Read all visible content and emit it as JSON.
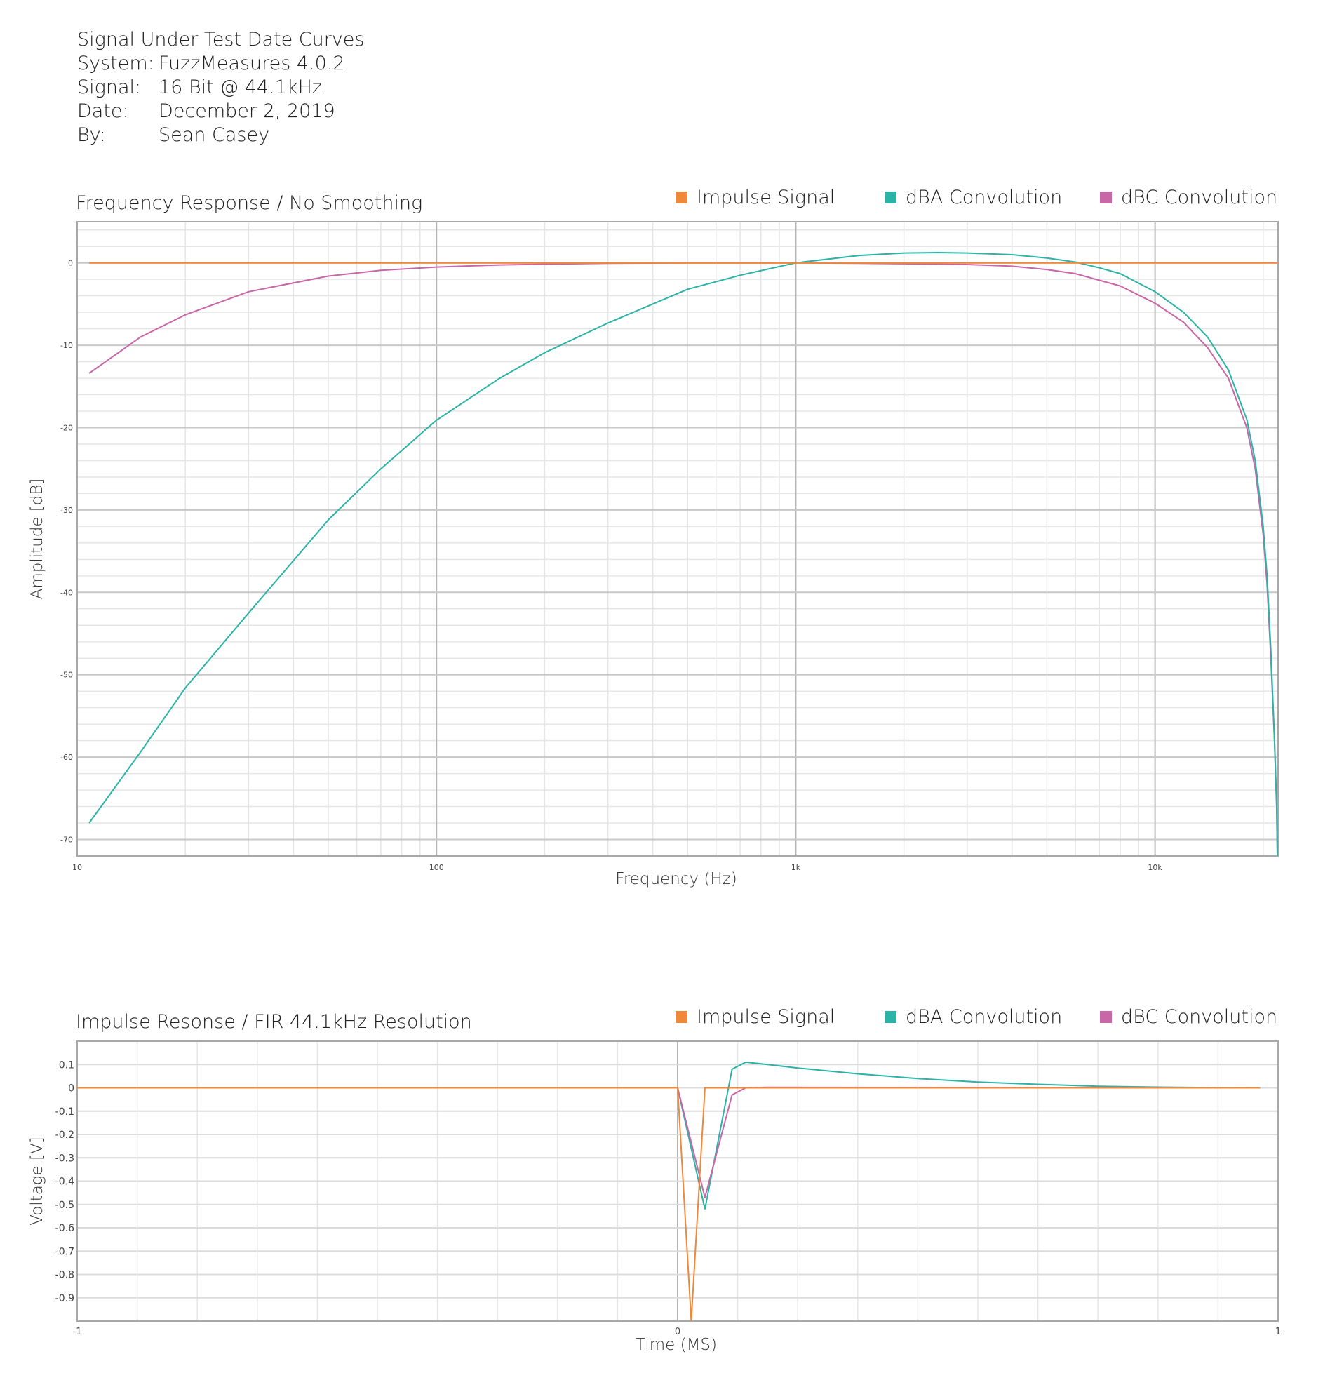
{
  "header": {
    "title": "Signal Under Test Date Curves",
    "system_label": "System:",
    "system_value": "FuzzMeasures 4.0.2",
    "signal_label": "Signal:",
    "signal_value": "16 Bit @ 44.1kHz",
    "date_label": "Date:",
    "date_value": "December 2, 2019",
    "by_label": "By:",
    "by_value": "Sean Casey"
  },
  "chart_data": [
    {
      "type": "line",
      "title": "Frequency Response / No Smoothing",
      "xlabel": "Frequency (Hz)",
      "ylabel": "Amplitude [dB]",
      "xscale": "log",
      "xlim": [
        10,
        22000
      ],
      "ylim": [
        -72,
        5
      ],
      "grid": true,
      "legend": "top-right",
      "x_ticks": [
        10,
        100,
        1000,
        10000
      ],
      "x_tick_labels": [
        "10",
        "100",
        "1k",
        "10k"
      ],
      "y_ticks": [
        0,
        -10,
        -20,
        -30,
        -40,
        -50,
        -60,
        -70
      ],
      "y_tick_labels": [
        "0",
        "-10",
        "-20",
        "-30",
        "-40",
        "-50",
        "-60",
        "-70"
      ],
      "series": [
        {
          "name": "Impulse Signal",
          "color": "#F0883A",
          "x": [
            10.8,
            100,
            1000,
            10000,
            21900
          ],
          "y": [
            0,
            0,
            0,
            0,
            0
          ]
        },
        {
          "name": "dBA Convolution",
          "color": "#2AB3A6",
          "x": [
            10.8,
            15,
            20,
            30,
            50,
            70,
            100,
            150,
            200,
            300,
            500,
            700,
            1000,
            1500,
            2000,
            2500,
            3000,
            4000,
            5000,
            6000,
            7000,
            8000,
            10000,
            12000,
            14000,
            16000,
            18000,
            19000,
            20000,
            20500,
            21000,
            21500,
            21800,
            21900
          ],
          "y": [
            -68.0,
            -59.4,
            -51.6,
            -42.5,
            -31.2,
            -25.0,
            -19.1,
            -14.0,
            -10.9,
            -7.3,
            -3.2,
            -1.5,
            0.0,
            0.9,
            1.2,
            1.25,
            1.2,
            1.0,
            0.6,
            0.1,
            -0.6,
            -1.3,
            -3.5,
            -6.0,
            -9.0,
            -13.0,
            -19.0,
            -24.0,
            -32.0,
            -38.0,
            -47.0,
            -58.0,
            -66.0,
            -72.0
          ]
        },
        {
          "name": "dBC Convolution",
          "color": "#C866A8",
          "x": [
            10.8,
            15,
            20,
            30,
            50,
            70,
            100,
            150,
            200,
            300,
            500,
            700,
            1000,
            1500,
            2000,
            3000,
            4000,
            5000,
            6000,
            8000,
            10000,
            12000,
            14000,
            16000,
            18000,
            19000,
            20000,
            20500,
            21000,
            21500,
            21800,
            21900
          ],
          "y": [
            -13.4,
            -9.0,
            -6.3,
            -3.5,
            -1.6,
            -0.9,
            -0.5,
            -0.25,
            -0.15,
            -0.05,
            0,
            0,
            0,
            -0.05,
            -0.1,
            -0.2,
            -0.4,
            -0.8,
            -1.3,
            -2.8,
            -4.9,
            -7.2,
            -10.3,
            -14.0,
            -20.0,
            -25.0,
            -33.0,
            -39.0,
            -48.0,
            -58.0,
            -66.0,
            -72.0
          ]
        }
      ]
    },
    {
      "type": "line",
      "title": "Impulse Resonse / FIR 44.1kHz Resolution",
      "xlabel": "Time (MS)",
      "ylabel": "Voltage [V]",
      "xlim": [
        -1,
        1
      ],
      "ylim": [
        -1.0,
        0.2
      ],
      "grid": true,
      "legend": "top-right",
      "x_ticks": [
        -1,
        0,
        1
      ],
      "x_tick_labels": [
        "-1",
        "0",
        "1"
      ],
      "y_ticks": [
        0.1,
        0,
        -0.1,
        -0.2,
        -0.3,
        -0.4,
        -0.5,
        -0.6,
        -0.7,
        -0.8,
        -0.9
      ],
      "y_tick_labels": [
        "0.1",
        "0",
        "-0.1",
        "-0.2",
        "-0.3",
        "-0.4",
        "-0.5",
        "-0.6",
        "-0.7",
        "-0.8",
        "-0.9"
      ],
      "series": [
        {
          "name": "dBA Convolution",
          "color": "#2AB3A6",
          "x": [
            -1.0,
            0.0,
            0.0454,
            0.0907,
            0.1134,
            0.15,
            0.2,
            0.3,
            0.4,
            0.5,
            0.6,
            0.7,
            0.8,
            0.9,
            0.97
          ],
          "y": [
            0,
            0,
            -0.52,
            0.08,
            0.11,
            0.1,
            0.085,
            0.06,
            0.04,
            0.025,
            0.015,
            0.007,
            0.003,
            0.001,
            0
          ]
        },
        {
          "name": "dBC Convolution",
          "color": "#C866A8",
          "x": [
            -1.0,
            0.0,
            0.0454,
            0.0907,
            0.1134,
            0.15,
            0.97
          ],
          "y": [
            0,
            0,
            -0.47,
            -0.03,
            0.0,
            0.002,
            0
          ]
        },
        {
          "name": "Impulse Signal",
          "color": "#F0883A",
          "x": [
            -1.0,
            0.0,
            0.0227,
            0.0454,
            0.97
          ],
          "y": [
            0,
            0,
            -1.0,
            0,
            0
          ]
        }
      ]
    }
  ]
}
